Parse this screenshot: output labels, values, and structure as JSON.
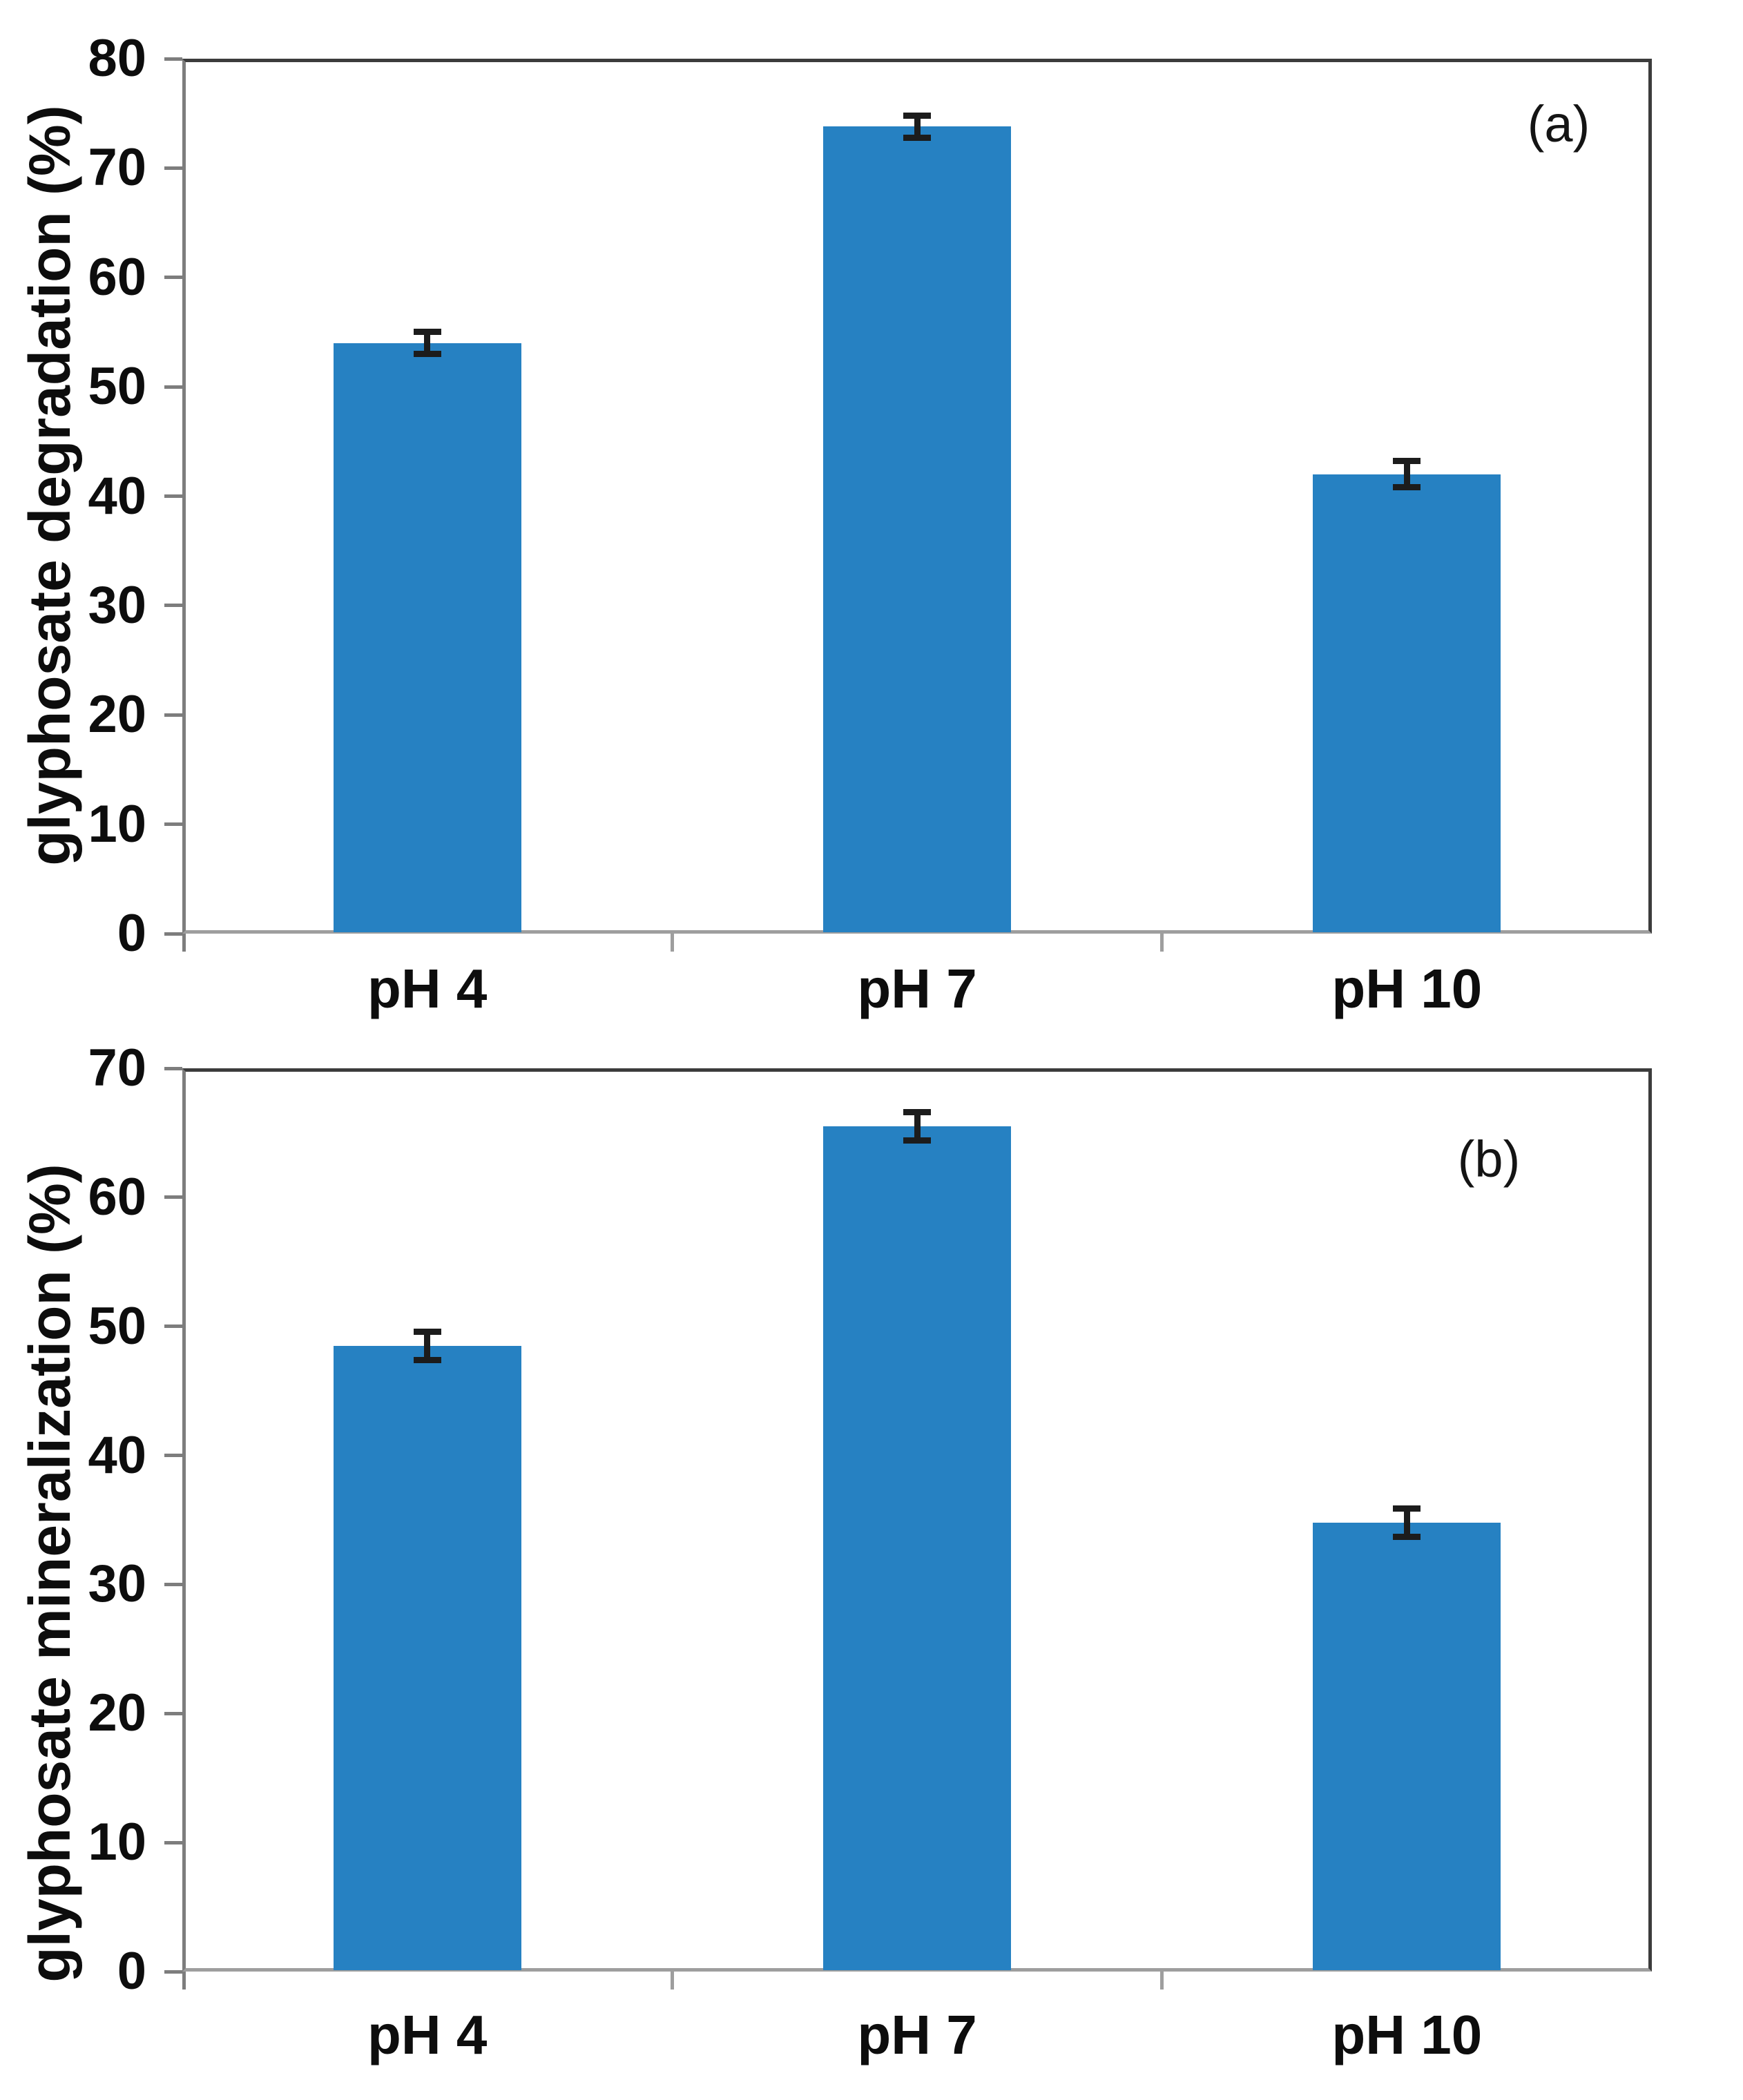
{
  "figure_type": "two-panel vertical bar chart with error bars",
  "chart_data": [
    {
      "type": "bar",
      "panel_label": "(a)",
      "title": "",
      "xlabel": "",
      "ylabel": "glyphosate degradation (%)",
      "categories": [
        "pH 4",
        "pH 7",
        "pH 10"
      ],
      "values": [
        54.0,
        73.8,
        42.0
      ],
      "error_bars": [
        1.0,
        1.0,
        1.2
      ],
      "ylim": [
        0,
        80
      ],
      "yticks": [
        0,
        10,
        20,
        30,
        40,
        50,
        60,
        70,
        80
      ],
      "grid": false,
      "legend": "none",
      "bar_color": "#2681c2",
      "error_color": "#1c1c1c"
    },
    {
      "type": "bar",
      "panel_label": "(b)",
      "title": "",
      "xlabel": "",
      "ylabel": "glyphosate mineralization (%)",
      "categories": [
        "pH 4",
        "pH 7",
        "pH 10"
      ],
      "values": [
        48.5,
        65.5,
        34.8
      ],
      "error_bars": [
        1.1,
        1.1,
        1.1
      ],
      "ylim": [
        0,
        70
      ],
      "yticks": [
        0,
        10,
        20,
        30,
        40,
        50,
        60,
        70
      ],
      "grid": false,
      "legend": "none",
      "bar_color": "#2681c2",
      "error_color": "#1c1c1c"
    }
  ]
}
